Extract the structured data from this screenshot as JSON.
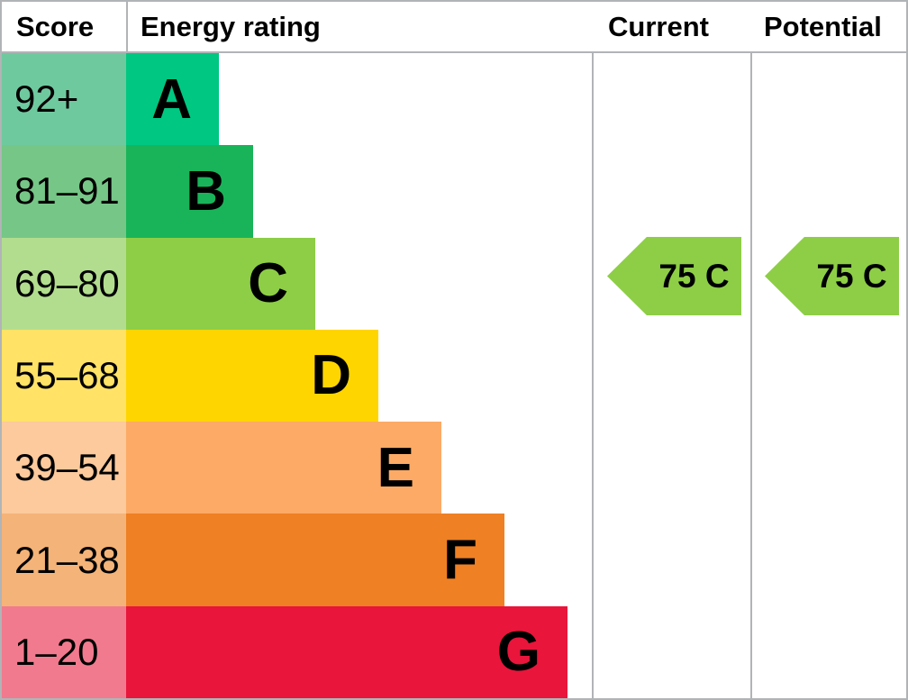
{
  "header": {
    "score": "Score",
    "energy_rating": "Energy rating",
    "current": "Current",
    "potential": "Potential"
  },
  "bands": [
    {
      "letter": "A",
      "score": "92+",
      "color": "#00c781",
      "tint": "#6fc99f"
    },
    {
      "letter": "B",
      "score": "81–91",
      "color": "#19b459",
      "tint": "#76c687"
    },
    {
      "letter": "C",
      "score": "69–80",
      "color": "#8dce46",
      "tint": "#b2dd8e"
    },
    {
      "letter": "D",
      "score": "55–68",
      "color": "#ffd500",
      "tint": "#ffe266"
    },
    {
      "letter": "E",
      "score": "39–54",
      "color": "#fcaa65",
      "tint": "#fcca9c"
    },
    {
      "letter": "F",
      "score": "21–38",
      "color": "#ef8023",
      "tint": "#f4b378"
    },
    {
      "letter": "G",
      "score": "1–20",
      "color": "#e9153b",
      "tint": "#f17a8e"
    }
  ],
  "current": {
    "label": "75 C",
    "score": 75,
    "rating": "C",
    "color": "#8dce46"
  },
  "potential": {
    "label": "75 C",
    "score": 75,
    "rating": "C",
    "color": "#8dce46"
  },
  "border_color": "#b1b4b6",
  "chart_data": {
    "type": "bar",
    "orientation": "horizontal",
    "title": "Energy rating",
    "categories": [
      "A",
      "B",
      "C",
      "D",
      "E",
      "F",
      "G"
    ],
    "score_ranges": [
      "92+",
      "81–91",
      "69–80",
      "55–68",
      "39–54",
      "21–38",
      "1–20"
    ],
    "band_colors": [
      "#00c781",
      "#19b459",
      "#8dce46",
      "#ffd500",
      "#fcaa65",
      "#ef8023",
      "#e9153b"
    ],
    "markers": [
      {
        "name": "Current",
        "score": 75,
        "rating": "C",
        "color": "#8dce46"
      },
      {
        "name": "Potential",
        "score": 75,
        "rating": "C",
        "color": "#8dce46"
      }
    ]
  }
}
